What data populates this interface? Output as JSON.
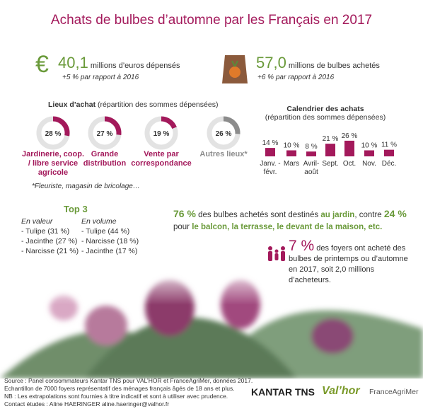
{
  "title": "Achats de bulbes d’automne par les Français en 2017",
  "stats": [
    {
      "value": "40,1",
      "text": "millions d’euros dépensés",
      "change": "+5 % par rapport à 2016"
    },
    {
      "value": "57,0",
      "text": "millions de bulbes achetés",
      "change": "+6 % par rapport à 2016"
    }
  ],
  "chart_data": [
    {
      "type": "donut",
      "title": "Lieux d’achat",
      "subtitle": "(répartition des sommes dépensées)",
      "categories": [
        "Jardinerie, coop. / libre service agricole",
        "Grande distribution",
        "Vente par correspondance",
        "Autres lieux*"
      ],
      "values": [
        28,
        27,
        19,
        26
      ],
      "value_labels": [
        "28 %",
        "27 %",
        "19 %",
        "26 %"
      ],
      "colors": [
        "#a3195b",
        "#a3195b",
        "#a3195b",
        "#8c8c8c"
      ],
      "footnote": "*Fleuriste, magasin de bricolage…"
    },
    {
      "type": "bar",
      "title": "Calendrier des achats",
      "subtitle": "(répartition des sommes dépensées)",
      "categories": [
        "Janv. - févr.",
        "Mars",
        "Avril-août",
        "Sept.",
        "Oct.",
        "Nov.",
        "Déc."
      ],
      "values": [
        14,
        10,
        8,
        21,
        26,
        10,
        11
      ],
      "value_labels": [
        "14 %",
        "10 %",
        "8 %",
        "21 %",
        "26 %",
        "10 %",
        "11 %"
      ],
      "color": "#a3195b"
    }
  ],
  "top3": {
    "title": "Top 3",
    "columns": [
      {
        "header": "En valeur",
        "items": [
          "- Tulipe (31 %)",
          "- Jacinthe (27 %)",
          "- Narcisse (21 %)"
        ]
      },
      {
        "header": "En volume",
        "items": [
          "- Tulipe (44 %)",
          "- Narcisse (18 %)",
          "- Jacinthe (17 %)"
        ]
      }
    ]
  },
  "destination": [
    "76 %",
    " des bulbes achetés sont destinés ",
    "au jardin",
    ", contre ",
    "24 %",
    " pour ",
    "le balcon, la terrasse, le devant de la maison, etc."
  ],
  "households": {
    "value": "7 %",
    "text": "des foyers ont acheté des bulbes de printemps ou d’automne en 2017, soit 2,0 millions d’acheteurs."
  },
  "footer": [
    "Source : Panel consommateurs Kantar TNS pour VAL’HOR et FranceAgriMer, données 2017.",
    "Echantillon de 7000 foyers représentatif des ménages français âgés de 18 ans et plus.",
    "NB : Les extrapolations sont fournies à titre indicatif et sont à utiliser avec prudence.",
    "Contact études : Aline HAERINGER aline.haeringer@valhor.fr"
  ],
  "logos": [
    "KANTAR TNS",
    "Val’hor",
    "FranceAgriMer"
  ]
}
